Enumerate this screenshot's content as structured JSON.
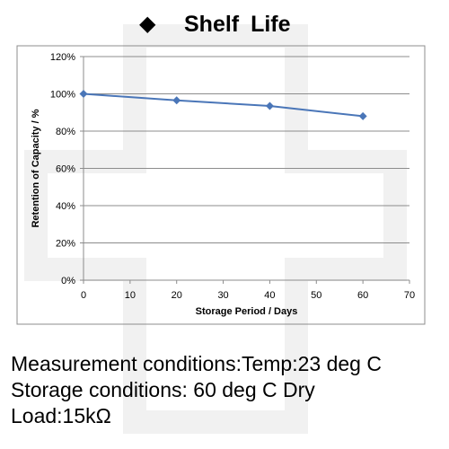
{
  "title": {
    "marker": "◆",
    "text": "Shelf  Life"
  },
  "chart_data": {
    "type": "line",
    "x": [
      0,
      20,
      40,
      60
    ],
    "series": [
      {
        "values": [
          100,
          96.5,
          93.5,
          88
        ],
        "color": "#4a76b8",
        "marker": "diamond"
      }
    ],
    "xlabel": "Storage Period / Days",
    "ylabel": "Retention of Capacity / %",
    "xlim": [
      0,
      70
    ],
    "ylim": [
      0,
      120
    ],
    "x_ticks": [
      0,
      10,
      20,
      30,
      40,
      50,
      60,
      70
    ],
    "y_ticks": [
      0,
      20,
      40,
      60,
      80,
      100,
      120
    ],
    "x_tick_labels": [
      "0",
      "10",
      "20",
      "30",
      "40",
      "50",
      "60",
      "70"
    ],
    "y_tick_labels": [
      "0%",
      "20%",
      "40%",
      "60%",
      "80%",
      "100%",
      "120%"
    ],
    "grid": "horizontal",
    "legend": "none"
  },
  "notes": {
    "measurement": "Measurement conditions:Temp:23 deg C",
    "storage": "Storage conditions: 60 deg C Dry",
    "load": "Load:15kΩ"
  },
  "colors": {
    "series": "#4a76b8",
    "gridline": "#8c8c8c",
    "watermark": "#f1f1f1"
  }
}
